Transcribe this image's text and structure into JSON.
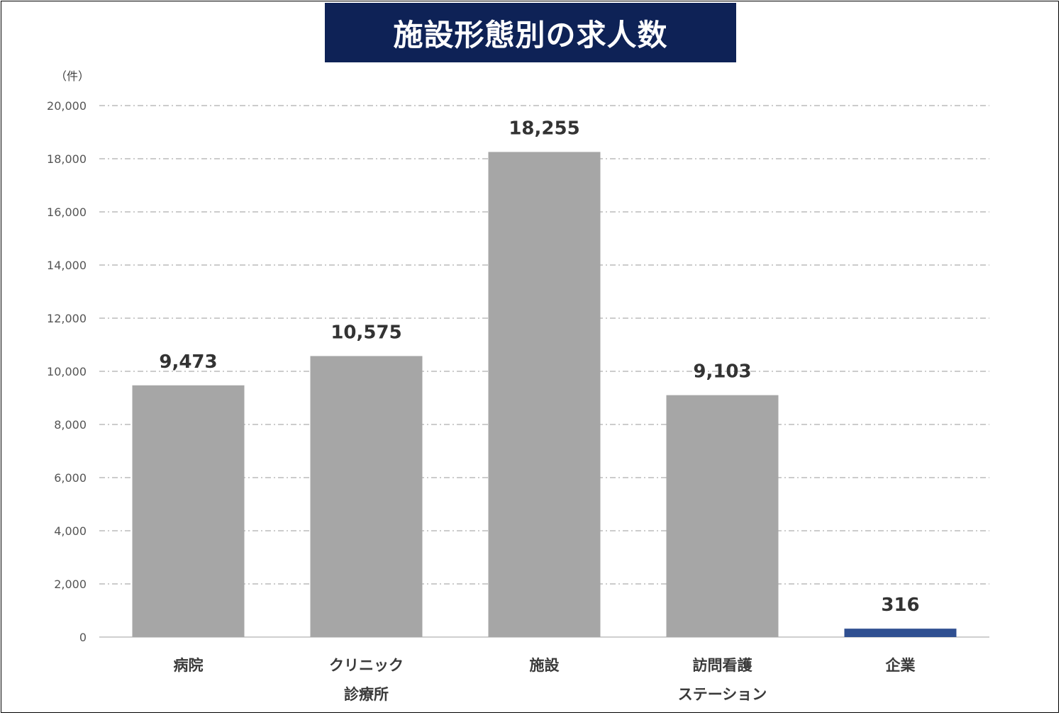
{
  "title": "施設形態別の求人数",
  "unit_label": "（件）",
  "colors": {
    "bar_default": "#a6a6a6",
    "bar_highlight": "#2f4f91",
    "title_bg": "#0e2256",
    "gridline": "#9a9a9a",
    "axis": "#bfbfbf"
  },
  "chart_data": {
    "type": "bar",
    "categories": [
      [
        "病院"
      ],
      [
        "クリニック",
        "診療所"
      ],
      [
        "施設"
      ],
      [
        "訪問看護",
        "ステーション"
      ],
      [
        "企業"
      ]
    ],
    "values": [
      9473,
      10575,
      18255,
      9103,
      316
    ],
    "data_labels": [
      "9,473",
      "10,575",
      "18,255",
      "9,103",
      "316"
    ],
    "highlight_index": 4,
    "ylim": [
      0,
      20000
    ],
    "yticks": [
      0,
      2000,
      4000,
      6000,
      8000,
      10000,
      12000,
      14000,
      16000,
      18000,
      20000
    ],
    "ytick_labels": [
      "0",
      "2,000",
      "4,000",
      "6,000",
      "8,000",
      "10,000",
      "12,000",
      "14,000",
      "16,000",
      "18,000",
      "20,000"
    ],
    "grid": true,
    "legend": "none"
  }
}
